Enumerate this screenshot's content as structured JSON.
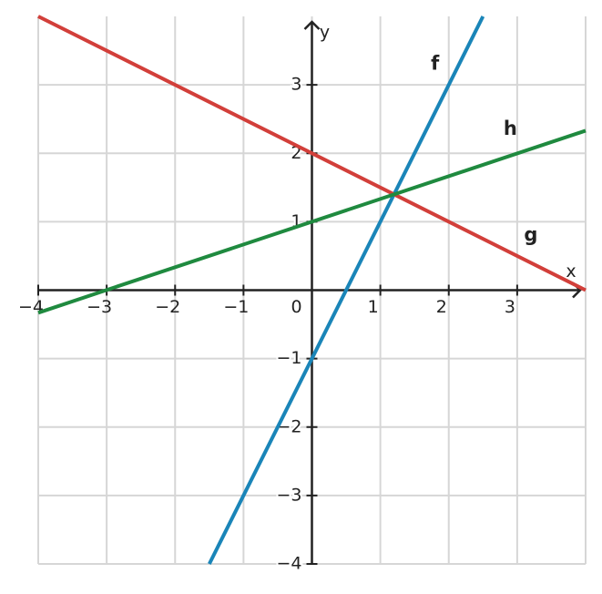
{
  "chart_data": {
    "type": "line",
    "xlabel": "x",
    "ylabel": "y",
    "xlim": [
      -4,
      4
    ],
    "ylim": [
      -4,
      4
    ],
    "xticks": [
      {
        "value": -4,
        "label": "−4"
      },
      {
        "value": -3,
        "label": "−3"
      },
      {
        "value": -2,
        "label": "−2"
      },
      {
        "value": -1,
        "label": "−1"
      },
      0,
      1,
      2,
      3
    ],
    "yticks": [
      {
        "value": -4,
        "label": "−4"
      },
      {
        "value": -3,
        "label": "−3"
      },
      {
        "value": -2,
        "label": "−2"
      },
      {
        "value": -1,
        "label": "−1"
      },
      1,
      2,
      3
    ],
    "grid": true,
    "series": [
      {
        "name": "f",
        "color": "#1a85b8",
        "x": [
          -1.5,
          2.5
        ],
        "values": [
          -4,
          4
        ]
      },
      {
        "name": "g",
        "color": "#d23f3a",
        "x": [
          -4,
          4
        ],
        "values": [
          4,
          0
        ]
      },
      {
        "name": "h",
        "color": "#1f8a3f",
        "x": [
          -4,
          4
        ],
        "values": [
          -0.33,
          2.33
        ]
      }
    ]
  }
}
